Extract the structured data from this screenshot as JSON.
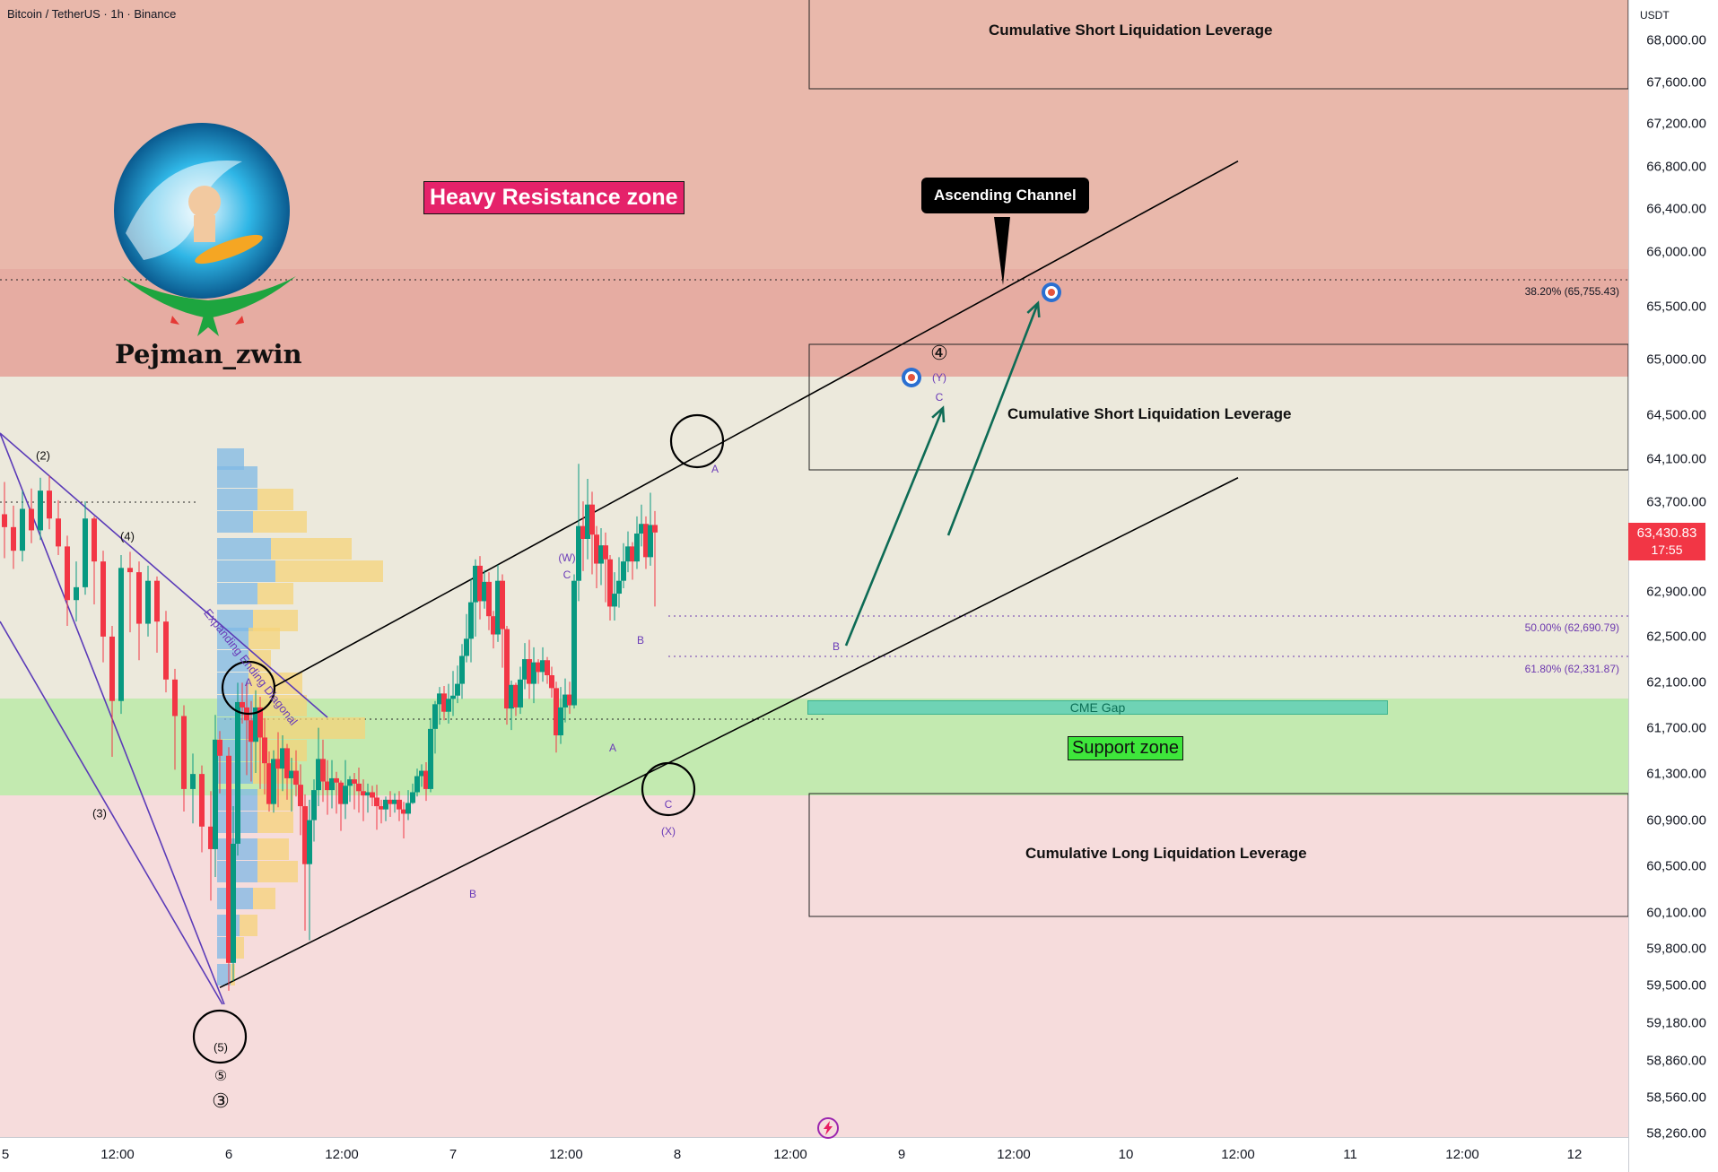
{
  "header": {
    "symbol_line": "Bitcoin / TetherUS · 1h · Binance"
  },
  "price_axis": {
    "unit": "USDT",
    "ticks": [
      "68,000.00",
      "67,600.00",
      "67,200.00",
      "66,800.00",
      "66,400.00",
      "66,000.00",
      "65,500.00",
      "65,000.00",
      "64,500.00",
      "64,100.00",
      "63,700.00",
      "62,900.00",
      "62,500.00",
      "62,100.00",
      "61,700.00",
      "61,300.00",
      "60,900.00",
      "60,500.00",
      "60,100.00",
      "59,800.00",
      "59,500.00",
      "59,180.00",
      "58,860.00",
      "58,560.00",
      "58,260.00"
    ],
    "last_price": "63,430.83",
    "countdown": "17:55"
  },
  "time_axis": {
    "labels": [
      "5",
      "12:00",
      "6",
      "12:00",
      "7",
      "12:00",
      "8",
      "12:00",
      "9",
      "12:00",
      "10",
      "12:00",
      "11",
      "12:00",
      "12"
    ]
  },
  "annotations": {
    "brand": "Pejman_zwin",
    "heavy_resistance": "Heavy Resistance zone",
    "support_zone": "Support zone",
    "ascending_channel": "Ascending Channel",
    "short_liq_top": "Cumulative Short Liquidation Leverage",
    "short_liq_mid": "Cumulative Short Liquidation Leverage",
    "long_liq": "Cumulative Long Liquidation Leverage",
    "cme_gap": "CME Gap",
    "diagonal": "Expanding Ending Diagonal",
    "fib_382": "38.20% (65,755.43)",
    "fib_500": "50.00% (62,690.79)",
    "fib_618": "61.80% (62,331.87)",
    "waves": {
      "w2": "(2)",
      "w3": "(3)",
      "w4": "(4)",
      "w5": "(5)",
      "c5": "⑤",
      "c3": "③",
      "a1": "A",
      "b1": "B",
      "W": "(W)",
      "wc": "C",
      "a2": "A",
      "b2": "B",
      "c2": "C",
      "X": "(X)",
      "a3": "A",
      "b3": "B",
      "c3b": "C",
      "Y": "(Y)",
      "c4": "④"
    }
  },
  "colors": {
    "bull": "#089981",
    "bear": "#f23645",
    "resistance_zone": "#e5a49a",
    "support_zone": "#c3eab0",
    "channel_arrow": "#0d6b55",
    "last_price": "#f23645"
  },
  "chart_data": {
    "type": "candlestick",
    "symbol": "BTCUSDT",
    "timeframe": "1h",
    "price_range": [
      58200,
      68250
    ],
    "x_range_days": [
      5.0,
      12.2
    ],
    "grid": false,
    "zones": [
      {
        "name": "Heavy Resistance zone",
        "low": 64850,
        "high": 68250
      },
      {
        "name": "Support zone",
        "low": 61140,
        "high": 62000
      },
      {
        "name": "Cumulative Short Liquidation Leverage (top)",
        "low": 67550,
        "high": 68250
      },
      {
        "name": "Cumulative Short Liquidation Leverage",
        "low": 64000,
        "high": 65150
      },
      {
        "name": "Cumulative Long Liquidation Leverage",
        "low": 60050,
        "high": 61170
      },
      {
        "name": "CME Gap",
        "low": 61860,
        "high": 61970
      }
    ],
    "fib_levels": [
      {
        "label": "38.20%",
        "price": 65755.43
      },
      {
        "label": "50.00%",
        "price": 62690.79
      },
      {
        "label": "61.80%",
        "price": 62331.87
      }
    ],
    "channel": {
      "upper": [
        {
          "t": 6.2,
          "p": 61950
        },
        {
          "t": 10.5,
          "p": 66850
        }
      ],
      "lower": [
        {
          "t": 5.96,
          "p": 59150
        },
        {
          "t": 10.5,
          "p": 63900
        }
      ]
    },
    "targets": [
      {
        "t": 9.05,
        "p": 64830
      },
      {
        "t": 9.67,
        "p": 65640
      }
    ],
    "last": 63430.83,
    "candles": [
      [
        5.0,
        63560,
        63440,
        63860,
        63150
      ],
      [
        5.04,
        63440,
        63220,
        63640,
        63050
      ],
      [
        5.08,
        63220,
        63610,
        63780,
        63120
      ],
      [
        5.12,
        63610,
        63410,
        63800,
        63290
      ],
      [
        5.16,
        63410,
        63780,
        63900,
        63320
      ],
      [
        5.2,
        63780,
        63520,
        63920,
        63420
      ],
      [
        5.24,
        63520,
        63260,
        63690,
        63180
      ],
      [
        5.28,
        63260,
        62760,
        63360,
        62520
      ],
      [
        5.32,
        62760,
        62880,
        63120,
        62560
      ],
      [
        5.36,
        62880,
        63520,
        63680,
        62810
      ],
      [
        5.4,
        63520,
        63120,
        63540,
        62720
      ],
      [
        5.44,
        63120,
        62420,
        63220,
        62180
      ],
      [
        5.48,
        62420,
        61820,
        62520,
        61300
      ],
      [
        5.52,
        61820,
        63060,
        63180,
        61700
      ],
      [
        5.56,
        63060,
        63020,
        63210,
        62460
      ],
      [
        5.6,
        63020,
        62540,
        63120,
        62200
      ],
      [
        5.64,
        62540,
        62940,
        63080,
        62420
      ],
      [
        5.68,
        62940,
        62560,
        62980,
        62270
      ],
      [
        5.72,
        62560,
        62020,
        62660,
        61900
      ],
      [
        5.76,
        62020,
        61680,
        62120,
        61180
      ],
      [
        5.8,
        61680,
        61000,
        61780,
        60790
      ],
      [
        5.84,
        61000,
        61140,
        61330,
        60680
      ],
      [
        5.88,
        61140,
        60650,
        61220,
        60410
      ],
      [
        5.92,
        60650,
        60440,
        60980,
        59960
      ],
      [
        5.94,
        60440,
        61460,
        61690,
        60180
      ],
      [
        5.96,
        61460,
        61310,
        61540,
        60960
      ],
      [
        6.0,
        61310,
        59380,
        61390,
        59120
      ],
      [
        6.02,
        59380,
        60490,
        60840,
        59210
      ],
      [
        6.04,
        60490,
        61810,
        61990,
        60380
      ],
      [
        6.06,
        61810,
        61760,
        61990,
        61610
      ],
      [
        6.08,
        61760,
        61640,
        62000,
        61130
      ],
      [
        6.1,
        61640,
        61440,
        61820,
        61070
      ],
      [
        6.12,
        61440,
        61760,
        61920,
        61150
      ],
      [
        6.14,
        61760,
        61480,
        61860,
        61000
      ],
      [
        6.16,
        61480,
        61240,
        61660,
        60950
      ],
      [
        6.18,
        61240,
        60860,
        61350,
        60790
      ],
      [
        6.2,
        60860,
        61280,
        61360,
        60780
      ],
      [
        6.22,
        61280,
        61190,
        61530,
        60830
      ],
      [
        6.24,
        61190,
        61380,
        61500,
        60980
      ],
      [
        6.26,
        61380,
        61100,
        61420,
        60900
      ],
      [
        6.28,
        61100,
        61170,
        61290,
        60790
      ],
      [
        6.3,
        61170,
        61040,
        61360,
        60930
      ],
      [
        6.32,
        61040,
        60840,
        61230,
        60570
      ],
      [
        6.34,
        60840,
        60300,
        60950,
        59680
      ],
      [
        6.36,
        60300,
        60710,
        60900,
        59590
      ],
      [
        6.38,
        60710,
        60990,
        61090,
        60510
      ],
      [
        6.4,
        60990,
        61280,
        61570,
        60840
      ],
      [
        6.42,
        61280,
        61070,
        61460,
        60880
      ],
      [
        6.44,
        61070,
        60990,
        61270,
        60760
      ],
      [
        6.46,
        60990,
        61100,
        61270,
        60820
      ],
      [
        6.48,
        61100,
        61060,
        61160,
        60770
      ],
      [
        6.5,
        61060,
        60860,
        61080,
        60610
      ],
      [
        6.52,
        60860,
        61030,
        61270,
        60720
      ],
      [
        6.54,
        61030,
        61090,
        61120,
        60880
      ],
      [
        6.56,
        61090,
        61050,
        61150,
        60810
      ],
      [
        6.58,
        61050,
        60980,
        61200,
        60780
      ],
      [
        6.6,
        60980,
        60940,
        61090,
        60700
      ],
      [
        6.62,
        60940,
        60970,
        61050,
        60780
      ],
      [
        6.64,
        60970,
        60920,
        61030,
        60840
      ],
      [
        6.66,
        60920,
        60840,
        61040,
        60620
      ],
      [
        6.68,
        60840,
        60810,
        60900,
        60680
      ],
      [
        6.7,
        60810,
        60900,
        60930,
        60700
      ],
      [
        6.72,
        60900,
        60860,
        60980,
        60740
      ],
      [
        6.74,
        60860,
        60900,
        60960,
        60780
      ],
      [
        6.76,
        60900,
        60810,
        60980,
        60700
      ],
      [
        6.78,
        60810,
        60770,
        60880,
        60540
      ],
      [
        6.8,
        60770,
        60870,
        60990,
        60710
      ],
      [
        6.82,
        60870,
        60970,
        61050,
        60860
      ],
      [
        6.84,
        60970,
        61120,
        61190,
        60930
      ],
      [
        6.86,
        61120,
        61170,
        61230,
        61020
      ],
      [
        6.88,
        61170,
        61000,
        61250,
        60890
      ],
      [
        6.9,
        61000,
        61560,
        61660,
        60970
      ],
      [
        6.92,
        61560,
        61790,
        61820,
        61330
      ],
      [
        6.94,
        61790,
        61890,
        61950,
        61600
      ],
      [
        6.96,
        61890,
        61720,
        61960,
        61640
      ],
      [
        6.98,
        61720,
        61840,
        61980,
        61610
      ],
      [
        7.0,
        61840,
        61870,
        62100,
        61680
      ],
      [
        7.02,
        61870,
        61980,
        62150,
        61800
      ],
      [
        7.04,
        61980,
        62240,
        62350,
        61840
      ],
      [
        7.06,
        62240,
        62400,
        62630,
        62180
      ],
      [
        7.08,
        62400,
        62740,
        62960,
        62180
      ],
      [
        7.1,
        62740,
        63080,
        63140,
        62420
      ],
      [
        7.12,
        63080,
        62750,
        63170,
        62580
      ],
      [
        7.14,
        62750,
        62930,
        63040,
        62680
      ],
      [
        7.16,
        62930,
        62610,
        63020,
        62480
      ],
      [
        7.18,
        62610,
        62440,
        62660,
        62310
      ],
      [
        7.2,
        62440,
        62940,
        63090,
        62370
      ],
      [
        7.22,
        62940,
        62490,
        63000,
        62130
      ],
      [
        7.24,
        62490,
        61750,
        62520,
        61600
      ],
      [
        7.26,
        61750,
        61970,
        62010,
        61550
      ],
      [
        7.28,
        61970,
        61760,
        61990,
        61680
      ],
      [
        7.3,
        61760,
        62020,
        62140,
        61700
      ],
      [
        7.32,
        62020,
        62210,
        62360,
        61930
      ],
      [
        7.34,
        62210,
        61980,
        62390,
        61840
      ],
      [
        7.36,
        61980,
        62180,
        62320,
        61800
      ],
      [
        7.38,
        62180,
        62090,
        62210,
        61980
      ],
      [
        7.4,
        62090,
        62200,
        62320,
        62000
      ],
      [
        7.42,
        62200,
        62060,
        62230,
        61980
      ],
      [
        7.44,
        62060,
        61940,
        62140,
        61850
      ],
      [
        7.46,
        61940,
        61500,
        62000,
        61340
      ],
      [
        7.48,
        61500,
        61760,
        61950,
        61420
      ],
      [
        7.5,
        61760,
        61880,
        62030,
        61620
      ],
      [
        7.52,
        61880,
        61780,
        62000,
        61700
      ],
      [
        7.54,
        61780,
        62940,
        63000,
        61750
      ],
      [
        7.56,
        62940,
        63450,
        64030,
        62750
      ],
      [
        7.58,
        63450,
        63330,
        63680,
        63030
      ],
      [
        7.6,
        63330,
        63650,
        63890,
        63140
      ],
      [
        7.62,
        63650,
        63370,
        63770,
        63000
      ],
      [
        7.64,
        63370,
        63100,
        63450,
        62870
      ],
      [
        7.66,
        63100,
        63270,
        63430,
        62900
      ],
      [
        7.68,
        63270,
        63140,
        63390,
        62740
      ],
      [
        7.7,
        63140,
        62700,
        63180,
        62570
      ],
      [
        7.72,
        62700,
        62820,
        63020,
        62570
      ],
      [
        7.74,
        62820,
        62940,
        63160,
        62690
      ],
      [
        7.76,
        62940,
        63120,
        63290,
        62870
      ],
      [
        7.78,
        63120,
        63260,
        63400,
        63020
      ],
      [
        7.8,
        63260,
        63120,
        63300,
        62950
      ],
      [
        7.82,
        63120,
        63380,
        63540,
        63050
      ],
      [
        7.84,
        63380,
        63470,
        63650,
        63260
      ],
      [
        7.86,
        63470,
        63160,
        63540,
        63050
      ],
      [
        7.88,
        63160,
        63460,
        63760,
        63080
      ],
      [
        7.9,
        63460,
        63390,
        63590,
        62700
      ]
    ]
  }
}
